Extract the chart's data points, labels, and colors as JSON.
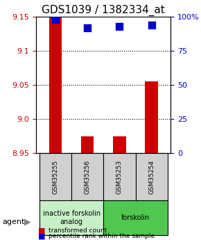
{
  "title": "GDS1039 / 1382334_at",
  "samples": [
    "GSM35255",
    "GSM35256",
    "GSM35253",
    "GSM35254"
  ],
  "red_values": [
    9.15,
    8.975,
    8.975,
    9.055
  ],
  "blue_values": [
    98,
    92,
    93,
    94
  ],
  "ylim_left": [
    8.95,
    9.15
  ],
  "ylim_right": [
    0,
    100
  ],
  "yticks_left": [
    8.95,
    9.0,
    9.05,
    9.1,
    9.15
  ],
  "yticks_right": [
    0,
    25,
    50,
    75,
    100
  ],
  "ytick_labels_right": [
    "0",
    "25",
    "50",
    "75",
    "100%"
  ],
  "agent_groups": [
    {
      "label": "inactive forskolin\nanalog",
      "color": "#c8f0c8",
      "span": [
        0,
        2
      ]
    },
    {
      "label": "forskolin",
      "color": "#50c850",
      "span": [
        2,
        4
      ]
    }
  ],
  "bar_color": "#cc0000",
  "dot_color": "#0000cc",
  "background_color": "#ffffff",
  "plot_bg": "#ffffff",
  "grid_color": "#000000",
  "sample_box_color": "#d0d0d0",
  "agent_label": "agent",
  "legend_red": "transformed count",
  "legend_blue": "percentile rank within the sample",
  "bar_width": 0.4,
  "dot_size": 60,
  "title_fontsize": 11,
  "tick_fontsize": 8,
  "label_fontsize": 8
}
